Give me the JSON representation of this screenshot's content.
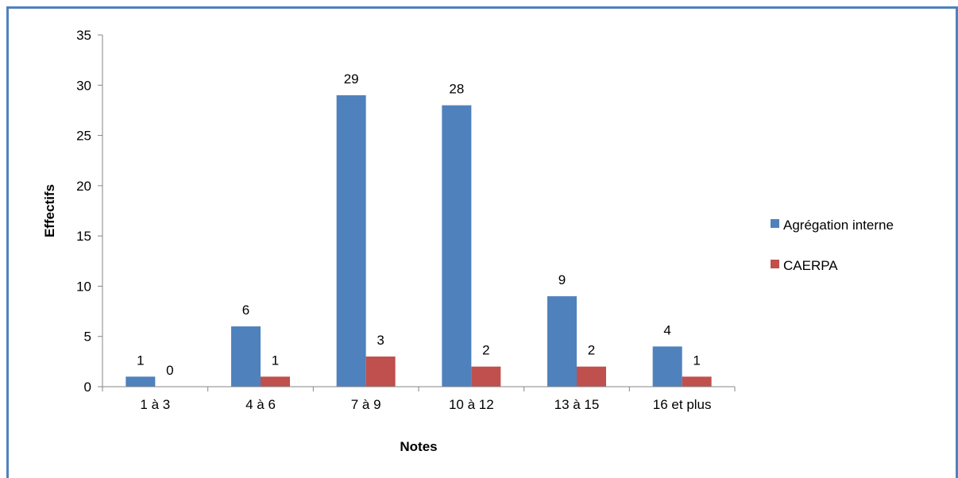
{
  "chart_data": {
    "type": "bar",
    "xlabel": "Notes",
    "ylabel": "Effectifs",
    "ylim": [
      0,
      35
    ],
    "yticks": [
      0,
      5,
      10,
      15,
      20,
      25,
      30,
      35
    ],
    "categories": [
      "1 à 3",
      "4 à 6",
      "7 à 9",
      "10 à 12",
      "13 à 15",
      "16 et plus"
    ],
    "series": [
      {
        "name": "Agrégation interne",
        "values": [
          1,
          6,
          29,
          28,
          9,
          4
        ],
        "color": "#4f81bd"
      },
      {
        "name": "CAERPA",
        "values": [
          0,
          1,
          3,
          2,
          2,
          1
        ],
        "color": "#c0504d"
      }
    ],
    "grid": false,
    "legend_position": "right",
    "data_labels": true
  },
  "colors": {
    "frame": "#4f81bd",
    "axis": "#868686"
  }
}
